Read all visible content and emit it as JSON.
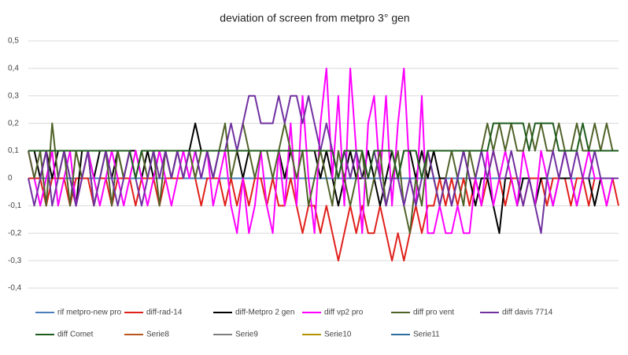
{
  "chart_data": {
    "type": "line",
    "title": "deviation of screen from metpro 3° gen",
    "ylim": [
      -0.4,
      0.5
    ],
    "yticks": [
      {
        "value": 0.5,
        "label": "0,5"
      },
      {
        "value": 0.4,
        "label": "0,4"
      },
      {
        "value": 0.3,
        "label": "0,3"
      },
      {
        "value": 0.2,
        "label": "0,2"
      },
      {
        "value": 0.1,
        "label": "0,1"
      },
      0,
      {
        "value": -0.1,
        "label": "-0,1"
      },
      {
        "value": -0.2,
        "label": "-0,2"
      },
      {
        "value": -0.3,
        "label": "-0,3"
      },
      {
        "value": -0.4,
        "label": "-0,4"
      }
    ],
    "grid": true,
    "legend": "bottom",
    "series": [
      {
        "name": "rif metpro-new pro",
        "color": "#4a7ebb",
        "values": [
          0,
          0,
          0,
          0,
          0,
          0,
          0,
          0,
          0,
          0,
          0,
          0,
          0,
          0,
          0,
          0,
          0,
          0,
          0,
          0,
          0,
          0,
          0,
          0,
          0,
          0,
          0,
          0,
          0,
          0,
          0,
          0,
          0,
          0,
          0,
          0,
          0,
          0,
          0,
          0,
          0,
          0,
          0,
          0,
          0,
          0,
          0,
          0,
          0,
          0,
          0,
          0,
          0,
          0,
          0,
          0,
          0,
          0,
          0,
          0,
          0,
          0,
          0,
          0,
          0,
          0,
          0,
          0,
          0,
          0,
          0,
          0,
          0,
          0,
          0,
          0,
          0,
          0,
          0,
          0,
          0,
          0,
          0,
          0,
          0,
          0,
          0,
          0,
          0,
          0,
          0,
          0,
          0,
          0,
          0,
          0,
          0,
          0,
          0,
          0
        ]
      },
      {
        "name": "diff-rad-14",
        "color": "#e0201b",
        "values": [
          0,
          0,
          0,
          -0.1,
          0,
          0,
          0,
          -0.1,
          0,
          0,
          0,
          -0.1,
          0,
          0,
          -0.1,
          0,
          0,
          0,
          -0.1,
          0,
          0,
          0,
          -0.1,
          0,
          0,
          0,
          0,
          0.1,
          0,
          -0.1,
          0,
          0,
          0,
          -0.1,
          0,
          -0.1,
          0,
          -0.1,
          0,
          0,
          -0.1,
          0,
          -0.1,
          -0.1,
          0,
          -0.1,
          -0.2,
          -0.1,
          -0.1,
          -0.2,
          -0.1,
          -0.2,
          -0.3,
          -0.2,
          -0.1,
          -0.2,
          -0.1,
          -0.2,
          -0.2,
          -0.1,
          -0.2,
          -0.3,
          -0.2,
          -0.3,
          -0.2,
          -0.1,
          -0.2,
          -0.1,
          -0.1,
          0,
          -0.1,
          0,
          -0.1,
          0,
          -0.1,
          0,
          -0.1,
          0,
          0.1,
          0,
          -0.1,
          0,
          0,
          -0.1,
          0,
          0,
          0,
          -0.1,
          0,
          0,
          0,
          -0.1,
          0,
          0,
          -0.1,
          0,
          0,
          -0.1,
          0,
          -0.1
        ]
      },
      {
        "name": "diff-Metpro 2 gen",
        "color": "#000000",
        "values": [
          0.1,
          0.1,
          0,
          0.1,
          0,
          0.1,
          0.1,
          0,
          -0.1,
          0.1,
          0.1,
          0,
          0.1,
          0.1,
          0,
          0.1,
          0,
          0.1,
          0.1,
          0,
          0.1,
          0,
          0.1,
          0.1,
          0,
          0.1,
          0.1,
          0.1,
          0.2,
          0.1,
          0.1,
          0,
          0.1,
          0.1,
          0.1,
          0.1,
          0,
          0.1,
          0.1,
          0.1,
          0.1,
          0.1,
          0.1,
          0,
          0.1,
          0.1,
          0.1,
          0.1,
          0.1,
          0,
          0.1,
          0,
          -0.1,
          0,
          0.1,
          0,
          0,
          0.1,
          0,
          -0.1,
          0,
          0.1,
          0,
          0.1,
          0.1,
          0,
          0.1,
          0,
          0.1,
          0,
          0,
          -0.1,
          0,
          0.1,
          0,
          -0.1,
          0,
          0,
          -0.1,
          -0.2,
          0,
          0,
          -0.1,
          0,
          0,
          -0.1,
          0,
          0,
          -0.1,
          0,
          0,
          0,
          -0.1,
          0,
          0,
          -0.1,
          0,
          0,
          0,
          0
        ]
      },
      {
        "name": "diff vp2 pro",
        "color": "#ff00ff",
        "values": [
          0.1,
          0,
          -0.1,
          0,
          0.1,
          -0.1,
          0,
          0.1,
          -0.1,
          0,
          0.1,
          0,
          -0.1,
          0,
          0.1,
          0,
          -0.1,
          0,
          0.1,
          0,
          -0.1,
          0,
          0.1,
          0,
          -0.1,
          0,
          0.1,
          0,
          0.1,
          0,
          0.1,
          -0.1,
          0,
          0.1,
          -0.1,
          -0.2,
          0,
          -0.2,
          -0.1,
          0.1,
          -0.1,
          -0.2,
          0.1,
          -0.1,
          0.2,
          -0.1,
          0.3,
          0,
          -0.2,
          0.2,
          0.4,
          0,
          0.3,
          -0.1,
          0.4,
          0.1,
          -0.2,
          0.2,
          0.3,
          0,
          0.3,
          -0.1,
          0.2,
          0.4,
          0,
          -0.1,
          0.3,
          -0.2,
          -0.2,
          -0.1,
          -0.2,
          -0.2,
          -0.1,
          -0.2,
          -0.2,
          0,
          -0.1,
          0.1,
          -0.1,
          0,
          0.1,
          0,
          -0.1,
          0.1,
          0,
          -0.1,
          0.1,
          0,
          -0.1,
          0,
          0.1,
          0,
          -0.1,
          0,
          0.1,
          0,
          0,
          -0.1,
          0,
          0
        ]
      },
      {
        "name": "diff pro vent",
        "color": "#4f6228",
        "values": [
          0.1,
          0,
          0.1,
          -0.1,
          0.2,
          0,
          0.1,
          -0.1,
          0.1,
          0,
          0.1,
          -0.1,
          0,
          0.1,
          -0.1,
          0.1,
          0,
          0.1,
          0,
          0.1,
          0,
          0.1,
          -0.1,
          0.1,
          0,
          0.1,
          0,
          0.1,
          0,
          0.1,
          0.1,
          0,
          0.1,
          0.2,
          0,
          0.1,
          0.2,
          0.1,
          0,
          0.1,
          0.1,
          0,
          0.1,
          0.2,
          0.1,
          0,
          0.1,
          -0.1,
          0,
          0.1,
          0,
          -0.1,
          0.1,
          0,
          -0.1,
          0,
          0.1,
          -0.1,
          0,
          0.1,
          -0.1,
          0,
          0.1,
          -0.1,
          -0.2,
          0,
          -0.1,
          0.1,
          0,
          -0.1,
          0,
          0.1,
          0,
          -0.1,
          0.1,
          0,
          0.1,
          0.2,
          0.1,
          0.2,
          0.1,
          0.2,
          0.1,
          0.1,
          0.2,
          0.1,
          0.2,
          0.1,
          0.1,
          0.2,
          0.1,
          0.1,
          0.2,
          0.1,
          0.1,
          0.2,
          0.1,
          0.2,
          0.1,
          0.1
        ]
      },
      {
        "name": "diff davis 7714",
        "color": "#7030a0",
        "values": [
          0,
          -0.1,
          0,
          0.1,
          -0.1,
          0,
          0.1,
          0,
          -0.1,
          0,
          0.1,
          -0.1,
          0,
          0.1,
          0,
          -0.1,
          0,
          0.1,
          0,
          -0.1,
          0,
          0.1,
          0,
          0.1,
          0,
          0.1,
          0,
          0.1,
          0.1,
          0,
          0.1,
          0,
          0.1,
          0.1,
          0.2,
          0.1,
          0.2,
          0.3,
          0.3,
          0.2,
          0.2,
          0.2,
          0.3,
          0.2,
          0.3,
          0.3,
          0.2,
          0.3,
          0.2,
          0.1,
          0.2,
          0.1,
          0,
          0.1,
          0,
          0.1,
          0,
          0,
          0.1,
          0,
          -0.1,
          0,
          0,
          -0.1,
          0,
          -0.1,
          0,
          0.1,
          0,
          -0.1,
          0,
          -0.1,
          0,
          0.1,
          0,
          0,
          0.1,
          0,
          0.1,
          0,
          0,
          0.1,
          0,
          -0.1,
          0,
          -0.1,
          -0.2,
          0,
          0.1,
          0,
          0.1,
          0,
          0.1,
          0,
          0,
          0.1,
          0,
          0,
          0,
          0
        ]
      },
      {
        "name": "diff Comet",
        "color": "#1e5c1e",
        "values": [
          0.1,
          0.1,
          0.1,
          0.1,
          0.1,
          0.1,
          0.1,
          0.1,
          0.1,
          0.1,
          0.1,
          0.1,
          0.1,
          0.1,
          0.1,
          0.1,
          0.1,
          0.1,
          0,
          0.1,
          0.1,
          0.1,
          0.1,
          0.1,
          0.1,
          0.1,
          0.1,
          0.1,
          0.1,
          0.1,
          0.1,
          0.1,
          0.1,
          0.1,
          0.1,
          0.1,
          0.1,
          0.1,
          0.1,
          0.1,
          0.1,
          0.1,
          0.1,
          0.1,
          0.1,
          0.1,
          0.1,
          0.1,
          0.1,
          0.1,
          0.1,
          0.1,
          0,
          0.1,
          0.1,
          0.1,
          0.1,
          0,
          0.1,
          0.1,
          0.1,
          0.1,
          0,
          0.1,
          0.1,
          0.1,
          0,
          0.1,
          0.1,
          0.1,
          0.1,
          0.1,
          0.1,
          0.1,
          0.1,
          0.1,
          0.1,
          0.1,
          0.2,
          0.2,
          0.2,
          0.2,
          0.2,
          0.2,
          0.1,
          0.2,
          0.2,
          0.2,
          0.2,
          0.1,
          0.1,
          0.1,
          0.1,
          0.2,
          0.1,
          0.1,
          0.1,
          0.1,
          0.1,
          0.1
        ]
      },
      {
        "name": "Serie8",
        "color": "#b8561e",
        "values": [
          null,
          null,
          null,
          null,
          null,
          null,
          null,
          null,
          null,
          null,
          null,
          null,
          null,
          null,
          null,
          null,
          null,
          null,
          null,
          null,
          null,
          null,
          null,
          null,
          null,
          null,
          null,
          null,
          null,
          null,
          null,
          null,
          null,
          null,
          null,
          null,
          null,
          null,
          null,
          null,
          null,
          null,
          null,
          null,
          null,
          null,
          null,
          null,
          null,
          null,
          null,
          null,
          null,
          null,
          null,
          null,
          null,
          null,
          null,
          null,
          null,
          null,
          null,
          null,
          null,
          null,
          null,
          null,
          null,
          null,
          null,
          null,
          null,
          null,
          null,
          null,
          null,
          null,
          null,
          null,
          null,
          null,
          null,
          null,
          null,
          null,
          null,
          null,
          null,
          null,
          null,
          null,
          null,
          null,
          null,
          null,
          null,
          null,
          null,
          null
        ]
      },
      {
        "name": "Serie9",
        "color": "#7f7f7f",
        "values": [
          null,
          null,
          null,
          null,
          null,
          null,
          null,
          null,
          null,
          null,
          null,
          null,
          null,
          null,
          null,
          null,
          null,
          null,
          null,
          null,
          null,
          null,
          null,
          null,
          null,
          null,
          null,
          null,
          null,
          null,
          null,
          null,
          null,
          null,
          null,
          null,
          null,
          null,
          null,
          null,
          null,
          null,
          null,
          null,
          null,
          null,
          null,
          null,
          null,
          null,
          null,
          null,
          null,
          null,
          null,
          null,
          null,
          null,
          null,
          null,
          null,
          null,
          null,
          null,
          null,
          null,
          null,
          null,
          null,
          null,
          null,
          null,
          null,
          null,
          null,
          null,
          null,
          null,
          null,
          null,
          null,
          null,
          null,
          null,
          null,
          null,
          null,
          null,
          null,
          null,
          null,
          null,
          null,
          null,
          null,
          null,
          null,
          null,
          null,
          null
        ]
      },
      {
        "name": "Serie10",
        "color": "#b39400",
        "values": [
          null,
          null,
          null,
          null,
          null,
          null,
          null,
          null,
          null,
          null,
          null,
          null,
          null,
          null,
          null,
          null,
          null,
          null,
          null,
          null,
          null,
          null,
          null,
          null,
          null,
          null,
          null,
          null,
          null,
          null,
          null,
          null,
          null,
          null,
          null,
          null,
          null,
          null,
          null,
          null,
          null,
          null,
          null,
          null,
          null,
          null,
          null,
          null,
          null,
          null,
          null,
          null,
          null,
          null,
          null,
          null,
          null,
          null,
          null,
          null,
          null,
          null,
          null,
          null,
          null,
          null,
          null,
          null,
          null,
          null,
          null,
          null,
          null,
          null,
          null,
          null,
          null,
          null,
          null,
          null,
          null,
          null,
          null,
          null,
          null,
          null,
          null,
          null,
          null,
          null,
          null,
          null,
          null,
          null,
          null,
          null,
          null,
          null,
          null,
          null
        ]
      },
      {
        "name": "Serie11",
        "color": "#2e6fa0",
        "values": [
          null,
          null,
          null,
          null,
          null,
          null,
          null,
          null,
          null,
          null,
          null,
          null,
          null,
          null,
          null,
          null,
          null,
          null,
          null,
          null,
          null,
          null,
          null,
          null,
          null,
          null,
          null,
          null,
          null,
          null,
          null,
          null,
          null,
          null,
          null,
          null,
          null,
          null,
          null,
          null,
          null,
          null,
          null,
          null,
          null,
          null,
          null,
          null,
          null,
          null,
          null,
          null,
          null,
          null,
          null,
          null,
          null,
          null,
          null,
          null,
          null,
          null,
          null,
          null,
          null,
          null,
          null,
          null,
          null,
          null,
          null,
          null,
          null,
          null,
          null,
          null,
          null,
          null,
          null,
          null,
          null,
          null,
          null,
          null,
          null,
          null,
          null,
          null,
          null,
          null,
          null,
          null,
          null,
          null,
          null,
          null,
          null,
          null,
          null,
          null
        ]
      }
    ]
  }
}
